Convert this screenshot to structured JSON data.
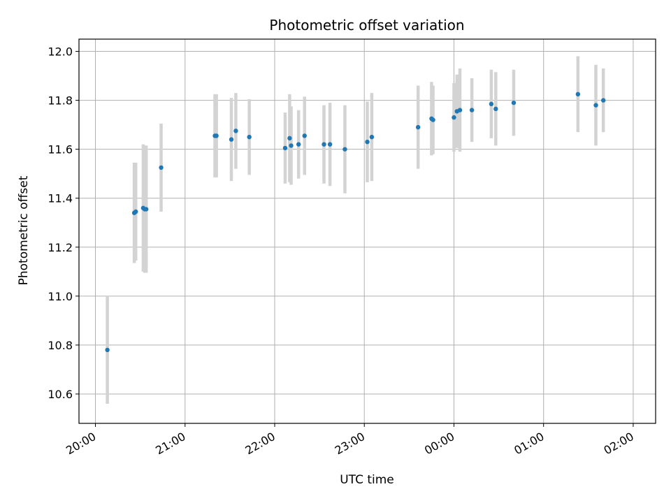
{
  "chart_data": {
    "type": "scatter",
    "title": "Photometric offset variation",
    "xlabel": "UTC time",
    "ylabel": "Photometric offset",
    "x_axis": "time",
    "x_ticks": [
      "20:00",
      "21:00",
      "22:00",
      "23:00",
      "00:00",
      "01:00",
      "02:00"
    ],
    "x_tick_minutes": [
      0,
      60,
      120,
      180,
      240,
      300,
      360
    ],
    "xlim_minutes": [
      -11,
      375
    ],
    "y_ticks": [
      "10.6",
      "10.8",
      "11.0",
      "11.2",
      "11.4",
      "11.6",
      "11.8",
      "12.0"
    ],
    "ylim": [
      10.48,
      12.05
    ],
    "grid": true,
    "colors": {
      "marker": "#1f77b4",
      "errorbar": "#d3d3d3",
      "grid": "#b0b0b0",
      "axes": "#000000"
    },
    "series": [
      {
        "points": [
          {
            "t_minutes": 8,
            "y": 10.78,
            "err": 0.22
          },
          {
            "t_minutes": 26,
            "y": 11.34,
            "err": 0.205
          },
          {
            "t_minutes": 27,
            "y": 11.345,
            "err": 0.2
          },
          {
            "t_minutes": 32,
            "y": 11.36,
            "err": 0.26
          },
          {
            "t_minutes": 33,
            "y": 11.355,
            "err": 0.26
          },
          {
            "t_minutes": 34,
            "y": 11.355,
            "err": 0.26
          },
          {
            "t_minutes": 44,
            "y": 11.525,
            "err": 0.18
          },
          {
            "t_minutes": 80,
            "y": 11.655,
            "err": 0.17
          },
          {
            "t_minutes": 81,
            "y": 11.655,
            "err": 0.17
          },
          {
            "t_minutes": 91,
            "y": 11.64,
            "err": 0.17
          },
          {
            "t_minutes": 94,
            "y": 11.675,
            "err": 0.155
          },
          {
            "t_minutes": 103,
            "y": 11.65,
            "err": 0.155
          },
          {
            "t_minutes": 127,
            "y": 11.605,
            "err": 0.145
          },
          {
            "t_minutes": 130,
            "y": 11.645,
            "err": 0.18
          },
          {
            "t_minutes": 131,
            "y": 11.615,
            "err": 0.16
          },
          {
            "t_minutes": 136,
            "y": 11.62,
            "err": 0.14
          },
          {
            "t_minutes": 140,
            "y": 11.655,
            "err": 0.16
          },
          {
            "t_minutes": 153,
            "y": 11.62,
            "err": 0.16
          },
          {
            "t_minutes": 157,
            "y": 11.62,
            "err": 0.17
          },
          {
            "t_minutes": 167,
            "y": 11.6,
            "err": 0.18
          },
          {
            "t_minutes": 182,
            "y": 11.63,
            "err": 0.165
          },
          {
            "t_minutes": 185,
            "y": 11.65,
            "err": 0.18
          },
          {
            "t_minutes": 216,
            "y": 11.69,
            "err": 0.17
          },
          {
            "t_minutes": 225,
            "y": 11.725,
            "err": 0.15
          },
          {
            "t_minutes": 226,
            "y": 11.72,
            "err": 0.14
          },
          {
            "t_minutes": 240,
            "y": 11.73,
            "err": 0.14
          },
          {
            "t_minutes": 242,
            "y": 11.755,
            "err": 0.15
          },
          {
            "t_minutes": 244,
            "y": 11.76,
            "err": 0.17
          },
          {
            "t_minutes": 252,
            "y": 11.76,
            "err": 0.13
          },
          {
            "t_minutes": 265,
            "y": 11.785,
            "err": 0.14
          },
          {
            "t_minutes": 268,
            "y": 11.765,
            "err": 0.15
          },
          {
            "t_minutes": 280,
            "y": 11.79,
            "err": 0.135
          },
          {
            "t_minutes": 323,
            "y": 11.825,
            "err": 0.155
          },
          {
            "t_minutes": 335,
            "y": 11.78,
            "err": 0.165
          },
          {
            "t_minutes": 340,
            "y": 11.8,
            "err": 0.13
          }
        ]
      }
    ]
  }
}
